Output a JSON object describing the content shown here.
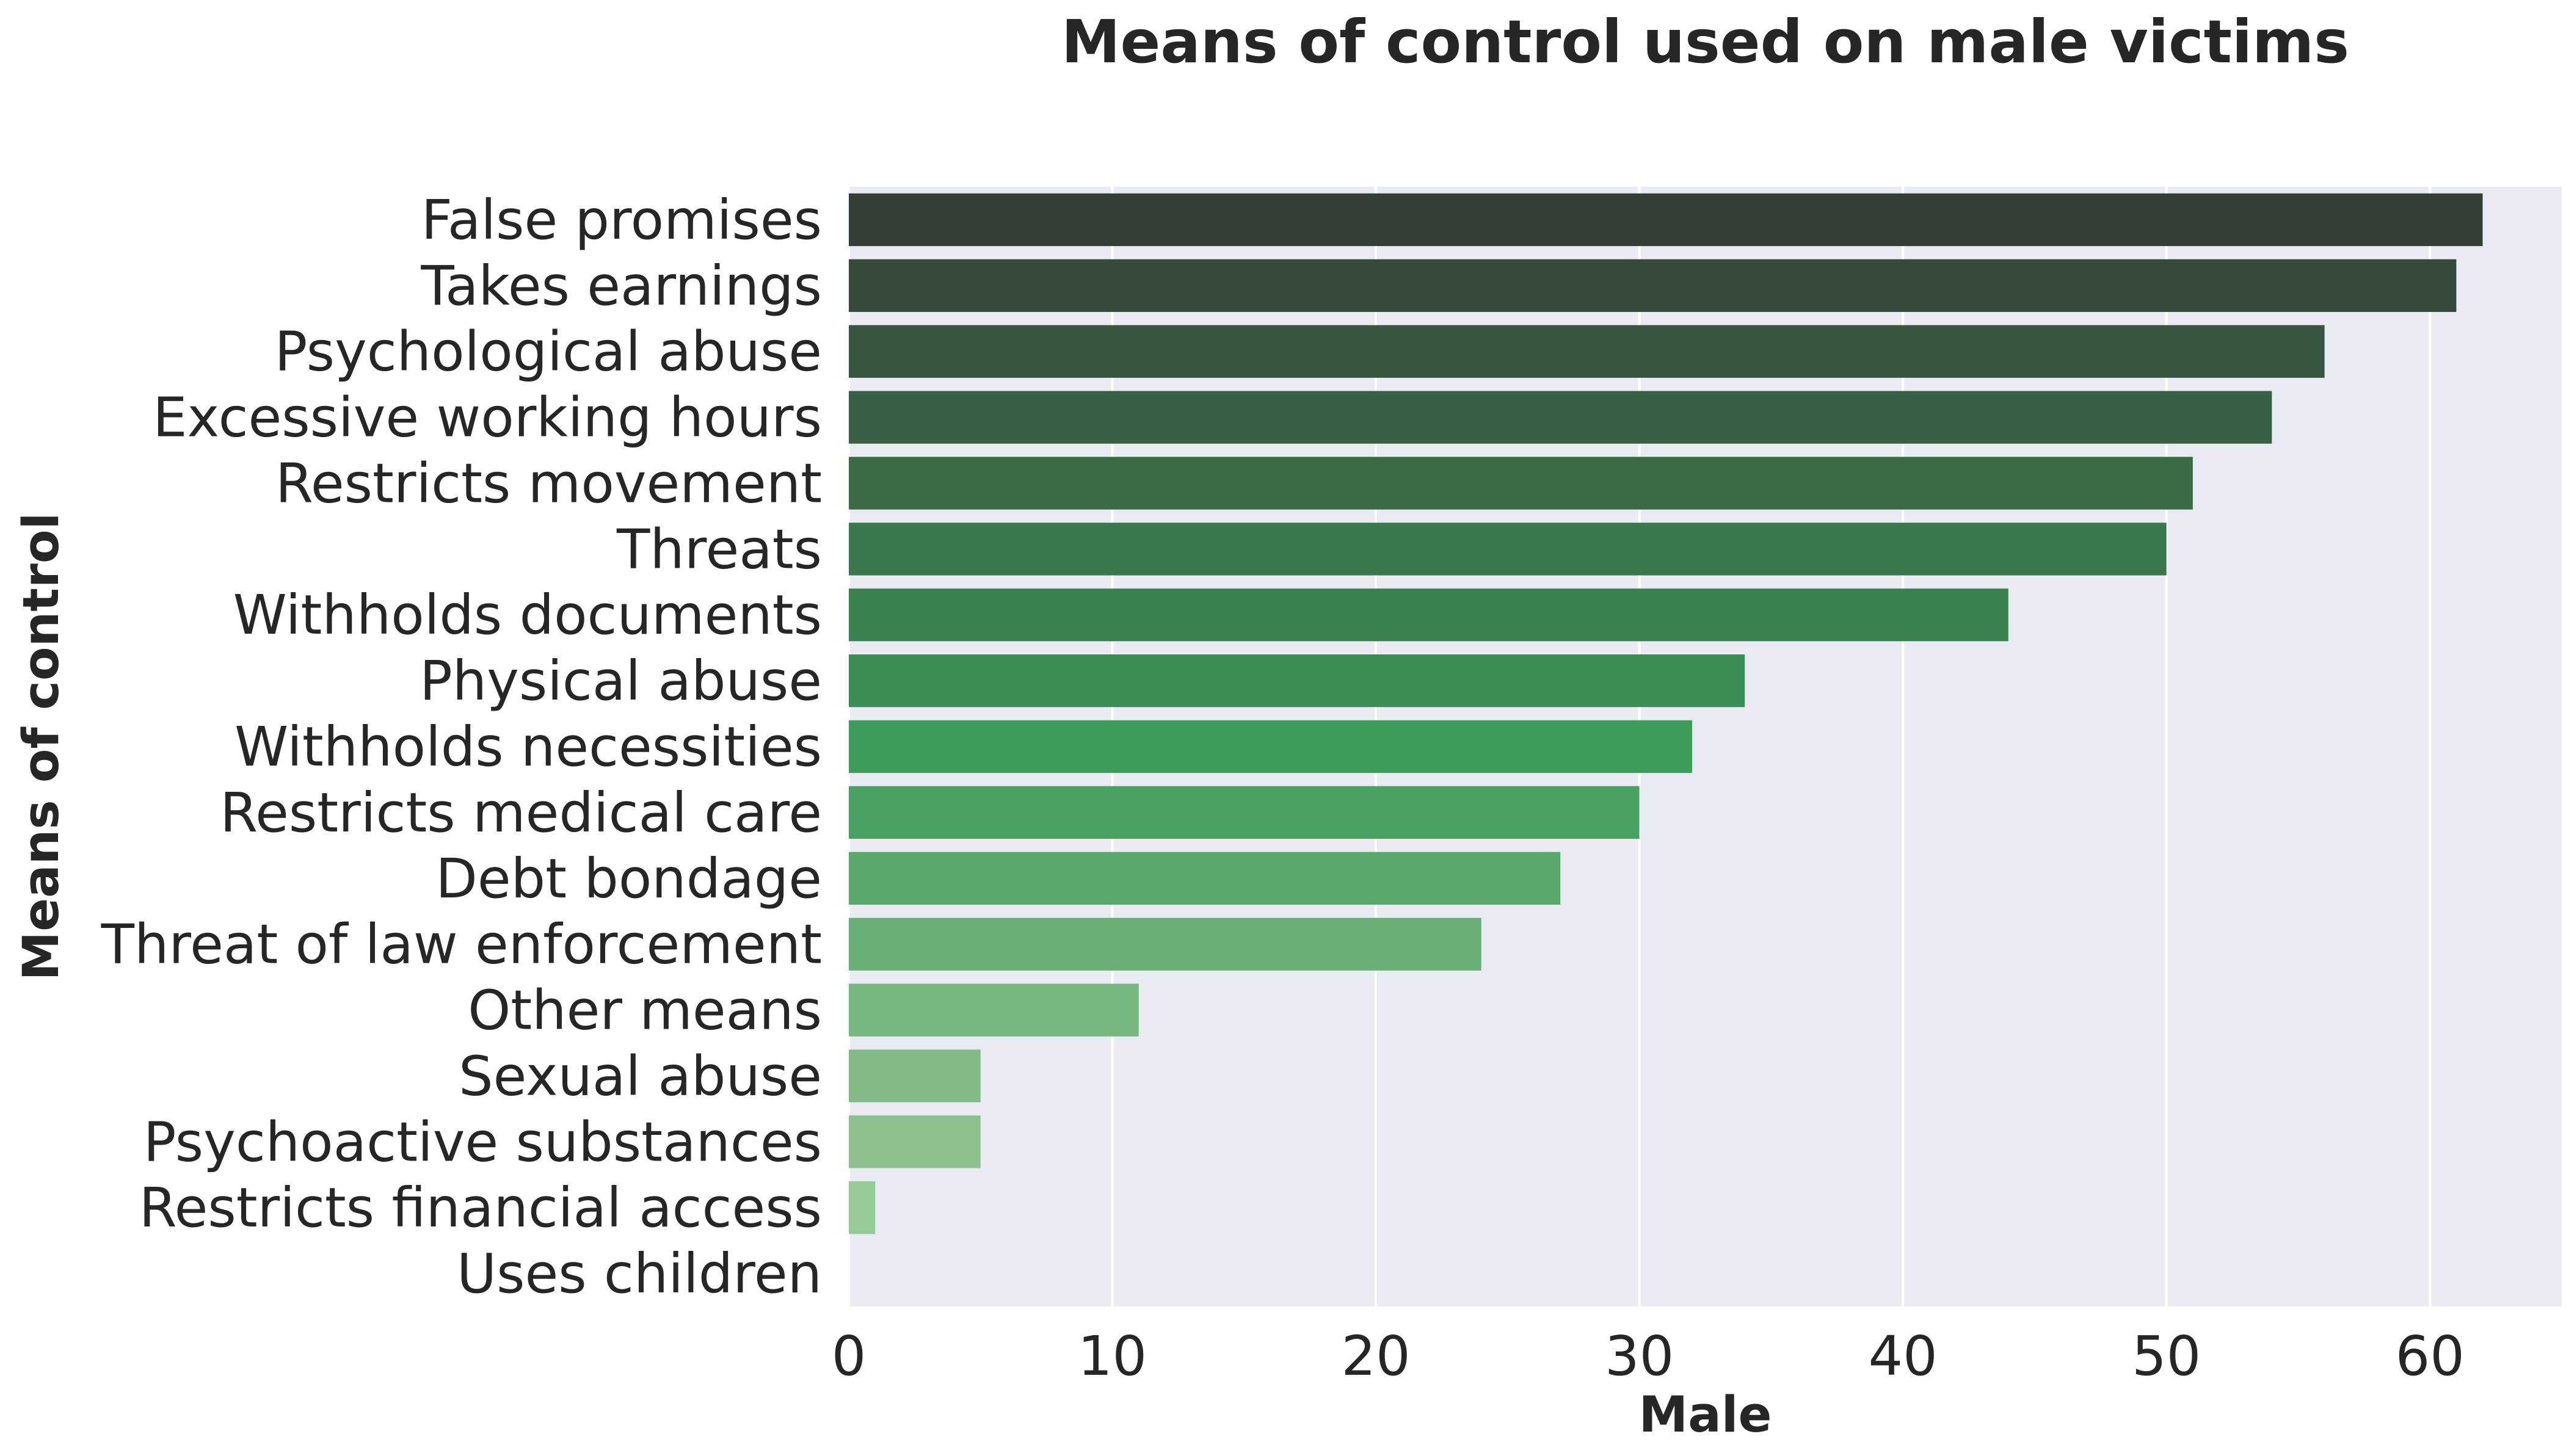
{
  "chart_data": {
    "type": "bar",
    "orientation": "horizontal",
    "title": "Means of control used on male victims",
    "xlabel": "Male",
    "ylabel": "Means of control",
    "categories": [
      "False promises",
      "Takes earnings",
      "Psychological abuse",
      "Excessive working hours",
      "Restricts movement",
      "Threats",
      "Withholds documents",
      "Physical abuse",
      "Withholds necessities",
      "Restricts medical care",
      "Debt bondage",
      "Threat of law enforcement",
      "Other means",
      "Sexual abuse",
      "Psychoactive substances",
      "Restricts financial access",
      "Uses children"
    ],
    "values": [
      62,
      61,
      56,
      54,
      51,
      50,
      44,
      34,
      32,
      30,
      27,
      24,
      11,
      5,
      5,
      1,
      0
    ],
    "colors": [
      "#333f37",
      "#354a3b",
      "#37553f",
      "#386043",
      "#3a6b47",
      "#39784d",
      "#3c8152",
      "#3a8f56",
      "#3d9d5c",
      "#4aa262",
      "#59a86c",
      "#68ae76",
      "#77b67f",
      "#82bb88",
      "#8cc28f",
      "#96c998",
      "#a0d0a0"
    ],
    "xlim": [
      0,
      65
    ],
    "xticks": [
      0,
      10,
      20,
      30,
      40,
      50,
      60
    ],
    "grid": true,
    "background": "#eaeaf2",
    "grid_color": "#ffffff",
    "legend": "none"
  }
}
